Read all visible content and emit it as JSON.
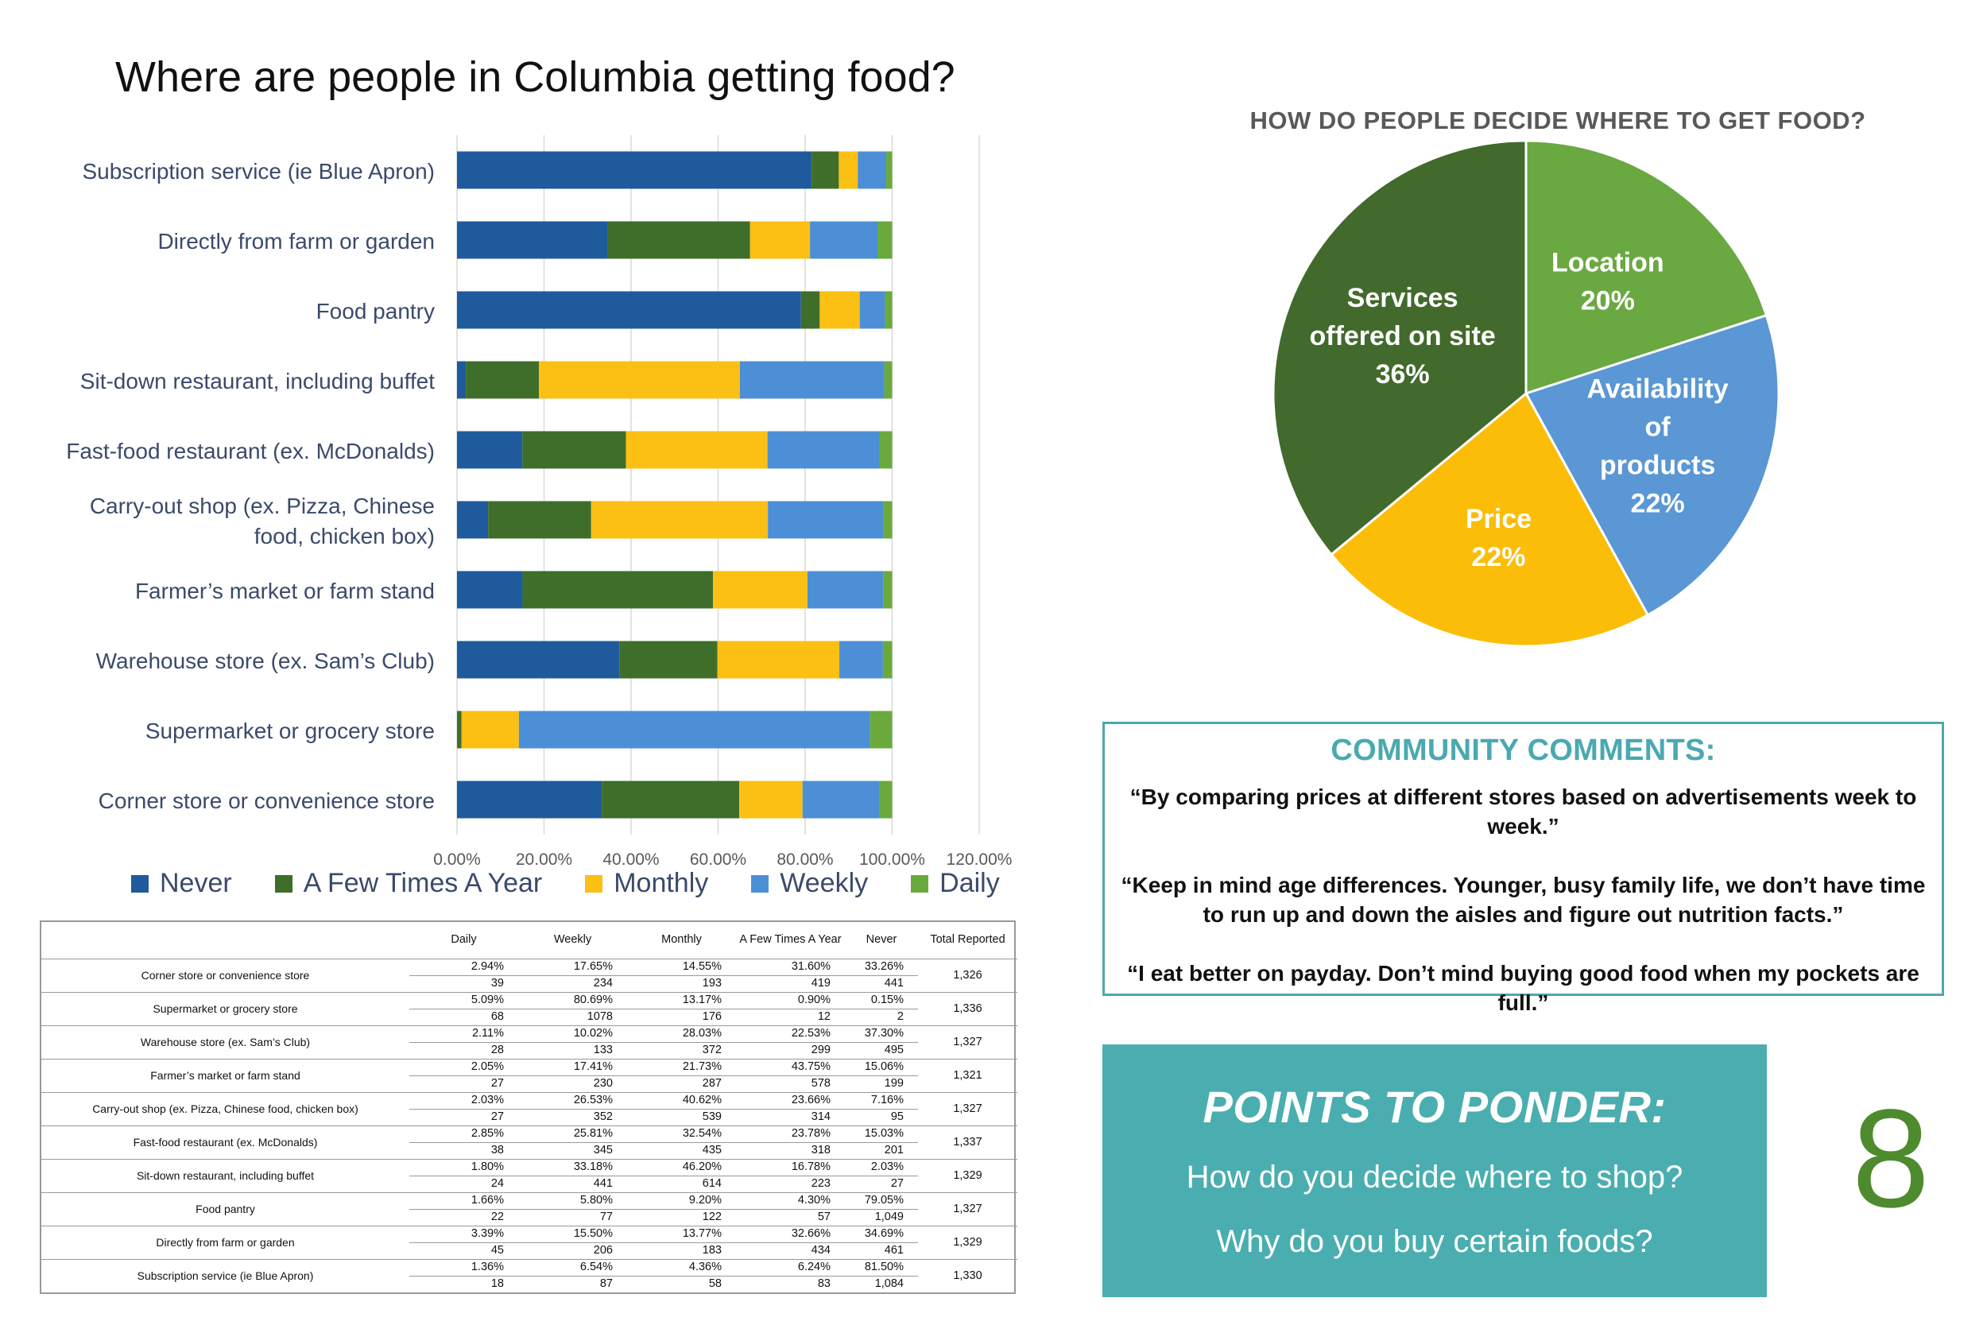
{
  "title": "Where are people in Columbia getting food?",
  "chart_data": [
    {
      "type": "bar",
      "orientation": "horizontal",
      "stacked": true,
      "percent_stacked": true,
      "categories": [
        "Subscription service (ie Blue Apron)",
        "Directly from farm or garden",
        "Food pantry",
        "Sit-down restaurant, including buffet",
        "Fast-food restaurant (ex. McDonalds)",
        "Carry-out shop (ex. Pizza, Chinese food, chicken box)",
        "Farmer’s market or farm stand",
        "Warehouse store (ex. Sam’s Club)",
        "Supermarket or grocery store",
        "Corner store or convenience store"
      ],
      "category_lines": [
        [
          "Subscription service (ie Blue Apron)"
        ],
        [
          "Directly from farm or garden"
        ],
        [
          "Food pantry"
        ],
        [
          "Sit-down restaurant, including buffet"
        ],
        [
          "Fast-food restaurant (ex. McDonalds)"
        ],
        [
          "Carry-out shop (ex. Pizza, Chinese",
          "food, chicken box)"
        ],
        [
          "Farmer’s market or farm stand"
        ],
        [
          "Warehouse store (ex. Sam’s Club)"
        ],
        [
          "Supermarket or grocery store"
        ],
        [
          "Corner store or convenience store"
        ]
      ],
      "series": [
        {
          "name": "Never",
          "color": "#1f5b9c",
          "values": [
            81.5,
            34.69,
            79.05,
            2.03,
            15.03,
            7.16,
            15.06,
            37.3,
            0.15,
            33.26
          ]
        },
        {
          "name": "A Few Times A Year",
          "color": "#3e6e2a",
          "values": [
            6.24,
            32.66,
            4.3,
            16.78,
            23.78,
            23.66,
            43.75,
            22.53,
            0.9,
            31.6
          ]
        },
        {
          "name": "Monthly",
          "color": "#fcbf13",
          "values": [
            4.36,
            13.77,
            9.2,
            46.2,
            32.54,
            40.62,
            21.73,
            28.03,
            13.17,
            14.55
          ]
        },
        {
          "name": "Weekly",
          "color": "#4c8fd6",
          "values": [
            6.54,
            15.5,
            5.8,
            33.18,
            25.81,
            26.53,
            17.41,
            10.02,
            80.69,
            17.65
          ]
        },
        {
          "name": "Daily",
          "color": "#6aaa3d",
          "values": [
            1.36,
            3.39,
            1.66,
            1.8,
            2.85,
            2.03,
            2.05,
            2.11,
            5.09,
            2.94
          ]
        }
      ],
      "xlim": [
        0,
        120
      ],
      "x_ticks": [
        "0.00%",
        "20.00%",
        "40.00%",
        "60.00%",
        "80.00%",
        "100.00%",
        "120.00%"
      ],
      "grid": true,
      "legend": "bottom"
    },
    {
      "type": "pie",
      "title": "HOW DO PEOPLE DECIDE WHERE TO GET FOOD?",
      "slices": [
        {
          "label_lines": [
            "Location",
            "20%"
          ],
          "value": 20,
          "color": "#6aa842"
        },
        {
          "label_lines": [
            "Availability",
            "of",
            "products",
            "22%"
          ],
          "value": 22,
          "color": "#5a97d4"
        },
        {
          "label_lines": [
            "Price",
            "22%"
          ],
          "value": 22,
          "color": "#fbbd07"
        },
        {
          "label_lines": [
            "Services",
            "offered on site",
            "36%"
          ],
          "value": 36,
          "color": "#426a2c"
        }
      ]
    },
    {
      "type": "table",
      "columns": [
        "",
        "Daily",
        "Weekly",
        "Monthly",
        "A Few Times A Year",
        "Never",
        "Total Reported"
      ],
      "rows": [
        {
          "label": "Corner store or convenience store",
          "pct": [
            "2.94%",
            "17.65%",
            "14.55%",
            "31.60%",
            "33.26%"
          ],
          "counts": [
            "39",
            "234",
            "193",
            "419",
            "441"
          ],
          "total": "1,326"
        },
        {
          "label": "Supermarket or grocery store",
          "pct": [
            "5.09%",
            "80.69%",
            "13.17%",
            "0.90%",
            "0.15%"
          ],
          "counts": [
            "68",
            "1078",
            "176",
            "12",
            "2"
          ],
          "total": "1,336"
        },
        {
          "label": "Warehouse store (ex. Sam’s Club)",
          "pct": [
            "2.11%",
            "10.02%",
            "28.03%",
            "22.53%",
            "37.30%"
          ],
          "counts": [
            "28",
            "133",
            "372",
            "299",
            "495"
          ],
          "total": "1,327"
        },
        {
          "label": "Farmer’s market or farm stand",
          "pct": [
            "2.05%",
            "17.41%",
            "21.73%",
            "43.75%",
            "15.06%"
          ],
          "counts": [
            "27",
            "230",
            "287",
            "578",
            "199"
          ],
          "total": "1,321"
        },
        {
          "label": "Carry-out shop (ex. Pizza, Chinese food, chicken box)",
          "pct": [
            "2.03%",
            "26.53%",
            "40.62%",
            "23.66%",
            "7.16%"
          ],
          "counts": [
            "27",
            "352",
            "539",
            "314",
            "95"
          ],
          "total": "1,327"
        },
        {
          "label": "Fast-food restaurant (ex. McDonalds)",
          "pct": [
            "2.85%",
            "25.81%",
            "32.54%",
            "23.78%",
            "15.03%"
          ],
          "counts": [
            "38",
            "345",
            "435",
            "318",
            "201"
          ],
          "total": "1,337"
        },
        {
          "label": "Sit-down restaurant, including buffet",
          "pct": [
            "1.80%",
            "33.18%",
            "46.20%",
            "16.78%",
            "2.03%"
          ],
          "counts": [
            "24",
            "441",
            "614",
            "223",
            "27"
          ],
          "total": "1,329"
        },
        {
          "label": "Food pantry",
          "pct": [
            "1.66%",
            "5.80%",
            "9.20%",
            "4.30%",
            "79.05%"
          ],
          "counts": [
            "22",
            "77",
            "122",
            "57",
            "1,049"
          ],
          "total": "1,327"
        },
        {
          "label": "Directly from farm or garden",
          "pct": [
            "3.39%",
            "15.50%",
            "13.77%",
            "32.66%",
            "34.69%"
          ],
          "counts": [
            "45",
            "206",
            "183",
            "434",
            "461"
          ],
          "total": "1,329"
        },
        {
          "label": "Subscription service (ie Blue Apron)",
          "pct": [
            "1.36%",
            "6.54%",
            "4.36%",
            "6.24%",
            "81.50%"
          ],
          "counts": [
            "18",
            "87",
            "58",
            "83",
            "1,084"
          ],
          "total": "1,330"
        }
      ]
    }
  ],
  "comments": {
    "title": "COMMUNITY COMMENTS:",
    "items": [
      "“By comparing prices at different stores based on advertisements week to week.”",
      "“Keep in mind age differences. Younger, busy family life, we don’t have time to run up and down the aisles and figure out nutrition facts.”",
      "“I eat better on payday. Don’t mind buying good food when my pockets are full.”"
    ]
  },
  "ponder": {
    "title": "POINTS TO PONDER:",
    "questions": [
      "How do you decide where to shop?",
      "Why do you buy certain foods?"
    ]
  },
  "page_number": "8"
}
